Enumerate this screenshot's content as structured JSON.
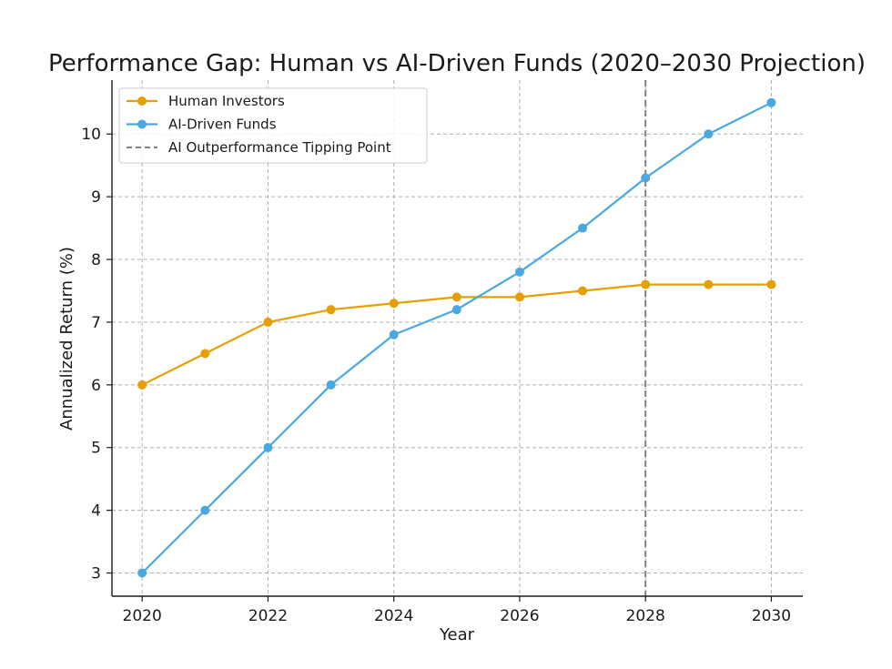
{
  "chart_data": {
    "type": "line",
    "title": "Performance Gap: Human vs AI-Driven Funds (2020–2030 Projection)",
    "xlabel": "Year",
    "ylabel": "Annualized Return (%)",
    "x": [
      2020,
      2021,
      2022,
      2023,
      2024,
      2025,
      2026,
      2027,
      2028,
      2029,
      2030
    ],
    "xticks": [
      "2020",
      "2022",
      "2024",
      "2026",
      "2028",
      "2030"
    ],
    "xtick_values": [
      2020,
      2022,
      2024,
      2026,
      2028,
      2030
    ],
    "yticks": [
      "3",
      "4",
      "5",
      "6",
      "7",
      "8",
      "9",
      "10"
    ],
    "ytick_values": [
      3,
      4,
      5,
      6,
      7,
      8,
      9,
      10
    ],
    "xlim": [
      2019.52,
      2030.5
    ],
    "ylim": [
      2.63,
      10.86
    ],
    "grid": true,
    "legend_position": "top-left",
    "series": [
      {
        "name": "Human Investors",
        "color": "#E69F00",
        "marker": "circle",
        "values": [
          6.0,
          6.5,
          7.0,
          7.2,
          7.3,
          7.4,
          7.4,
          7.5,
          7.6,
          7.6,
          7.6
        ]
      },
      {
        "name": "AI-Driven Funds",
        "color": "#4AA8E0",
        "marker": "circle",
        "values": [
          3.0,
          4.0,
          5.0,
          6.0,
          6.8,
          7.2,
          7.8,
          8.5,
          9.3,
          10.0,
          10.5
        ]
      }
    ],
    "annotations": [
      {
        "type": "vline",
        "x": 2028,
        "label": "AI Outperformance Tipping Point",
        "color": "#808080",
        "style": "dashed"
      }
    ]
  }
}
